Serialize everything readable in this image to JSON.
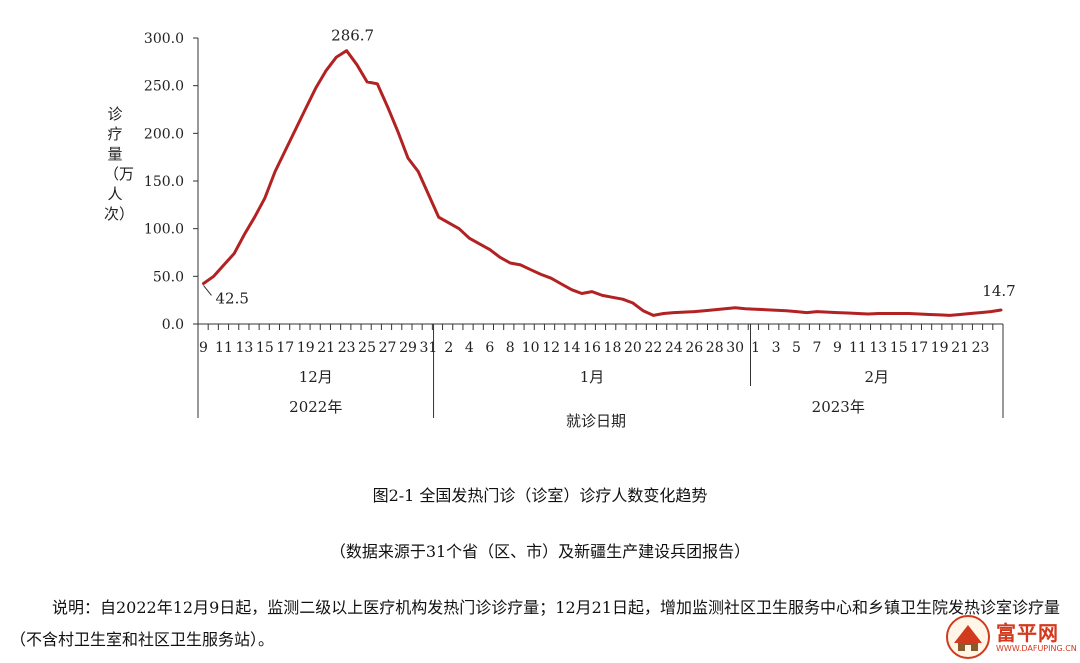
{
  "chart_data": {
    "type": "line",
    "y_label": "诊疗量（万人次）",
    "x_label": "就诊日期",
    "ylim": [
      0,
      300
    ],
    "y_ticks": [
      "0.0",
      "50.0",
      "100.0",
      "150.0",
      "200.0",
      "250.0",
      "300.0"
    ],
    "start_label": "42.5",
    "peak_label": "286.7",
    "end_label": "14.7",
    "day_ticks": [
      "9",
      "11",
      "13",
      "15",
      "17",
      "19",
      "21",
      "23",
      "25",
      "27",
      "29",
      "31",
      "2",
      "4",
      "6",
      "8",
      "10",
      "12",
      "14",
      "16",
      "18",
      "20",
      "22",
      "24",
      "26",
      "28",
      "30",
      "1",
      "3",
      "5",
      "7",
      "9",
      "11",
      "13",
      "15",
      "17",
      "19",
      "21",
      "23"
    ],
    "months": [
      "12月",
      "1月",
      "2月"
    ],
    "years": [
      "2022年",
      "2023年"
    ],
    "series_color": "#b22222",
    "values": [
      42.5,
      50,
      62,
      74,
      94,
      112,
      132,
      160,
      182,
      204,
      226,
      248,
      266,
      280,
      286.7,
      272,
      254,
      252,
      228,
      202,
      174,
      160,
      136,
      112,
      106,
      100,
      90,
      84,
      78,
      70,
      64,
      62,
      57,
      52,
      48,
      42,
      36,
      32,
      34,
      30,
      28,
      26,
      22,
      14,
      9,
      11,
      12,
      12.5,
      13,
      14,
      15,
      16,
      17,
      16,
      15.5,
      15,
      14.5,
      14,
      13,
      12,
      13,
      12.5,
      12,
      11.5,
      11,
      10.5,
      11,
      11,
      11,
      11,
      10.5,
      10,
      9.5,
      9,
      10,
      11,
      12,
      13,
      14.7
    ]
  },
  "caption_title": "图2-1  全国发热门诊（诊室）诊疗人数变化趋势",
  "caption_source": "（数据来源于31个省（区、市）及新疆生产建设兵团报告）",
  "note": "说明：自2022年12月9日起，监测二级以上医疗机构发热门诊诊疗量；12月21日起，增加监测社区卫生服务中心和乡镇卫生院发热诊室诊疗量（不含村卫生室和社区卫生服务站）。",
  "watermark": {
    "text": "富平网",
    "sub": "WWW.DAFUPING.CN"
  }
}
